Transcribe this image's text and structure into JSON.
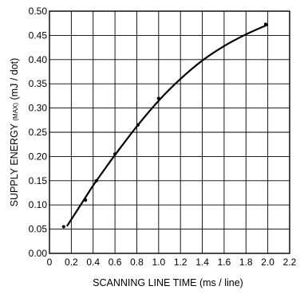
{
  "chart_data": {
    "type": "line",
    "title": "",
    "xlabel": "SCANNING  LINE  TIME (ms / line)",
    "ylabel": {
      "before": "SUPPLY  ENERGY ",
      "subscript": "(MAX)",
      "after": " (mJ / dot)"
    },
    "xlim": [
      0,
      2.2
    ],
    "ylim": [
      0,
      0.5
    ],
    "x_ticks": [
      "0",
      "0.2",
      "0.4",
      "0.6",
      "0.8",
      "1.0",
      "1.2",
      "1.4",
      "1.6",
      "1.8",
      "2.0",
      "2.2"
    ],
    "x_tick_values": [
      0,
      0.2,
      0.4,
      0.6,
      0.8,
      1.0,
      1.2,
      1.4,
      1.6,
      1.8,
      2.0,
      2.2
    ],
    "y_ticks": [
      "0.00",
      "0.05",
      "0.10",
      "0.15",
      "0.20",
      "0.25",
      "0.30",
      "0.35",
      "0.40",
      "0.45",
      "0.50"
    ],
    "y_tick_values": [
      0,
      0.05,
      0.1,
      0.15,
      0.2,
      0.25,
      0.3,
      0.35,
      0.4,
      0.45,
      0.5
    ],
    "grid": true,
    "series": [
      {
        "markers": true,
        "points": [
          {
            "x": 0.13,
            "y": 0.055
          },
          {
            "x": 0.33,
            "y": 0.11
          },
          {
            "x": 0.43,
            "y": 0.15
          },
          {
            "x": 0.6,
            "y": 0.205
          },
          {
            "x": 0.81,
            "y": 0.265
          },
          {
            "x": 1.0,
            "y": 0.32
          },
          {
            "x": 1.98,
            "y": 0.473
          }
        ],
        "curve": [
          {
            "x": 0.16,
            "y": 0.056
          },
          {
            "x": 0.2,
            "y": 0.07
          },
          {
            "x": 0.3,
            "y": 0.105
          },
          {
            "x": 0.4,
            "y": 0.14
          },
          {
            "x": 0.5,
            "y": 0.172
          },
          {
            "x": 0.6,
            "y": 0.203
          },
          {
            "x": 0.8,
            "y": 0.262
          },
          {
            "x": 1.0,
            "y": 0.315
          },
          {
            "x": 1.2,
            "y": 0.36
          },
          {
            "x": 1.4,
            "y": 0.398
          },
          {
            "x": 1.6,
            "y": 0.428
          },
          {
            "x": 1.8,
            "y": 0.452
          },
          {
            "x": 2.0,
            "y": 0.472
          }
        ]
      }
    ]
  }
}
